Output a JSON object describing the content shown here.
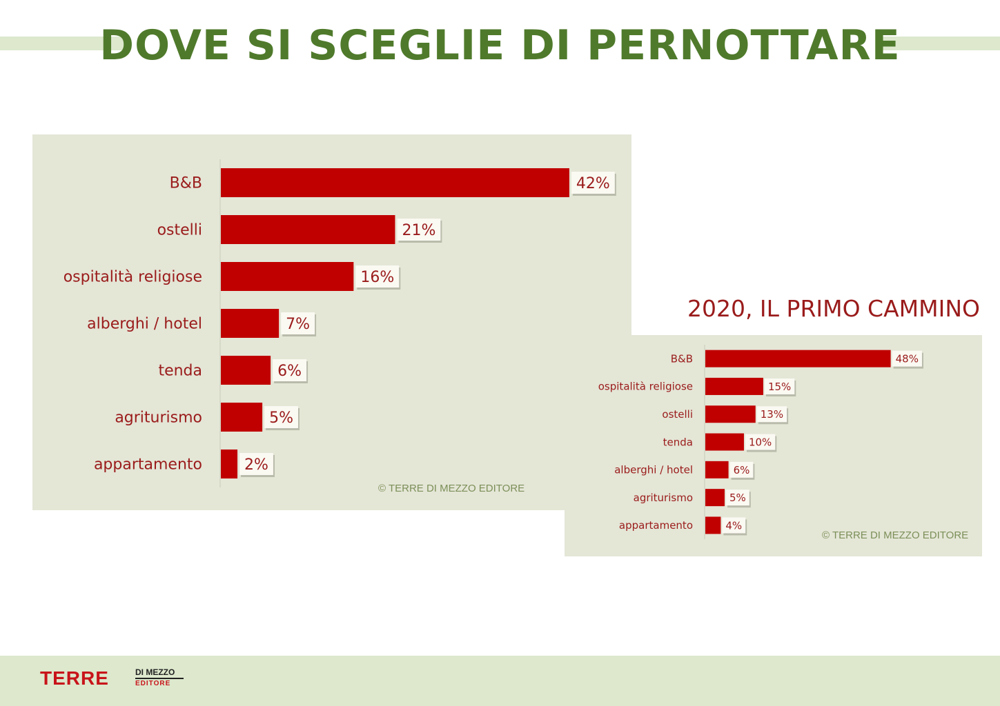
{
  "slide": {
    "title": "DOVE SI SCEGLIE DI PERNOTTARE",
    "inset_heading": "2020, IL PRIMO CAMMINO",
    "credit": "© TERRE DI MEZZO EDITORE",
    "accent_green": "#4f7a2b",
    "bar_color": "#c00000",
    "label_color": "#9a1b1b"
  },
  "logo": {
    "main": "TERRE",
    "top": "DI MEZZO",
    "bottom": "EDITORE"
  },
  "chart_data": [
    {
      "type": "bar",
      "orientation": "horizontal",
      "title": "",
      "categories": [
        "B&B",
        "ostelli",
        "ospitalità religiose",
        "alberghi / hotel",
        "tenda",
        "agriturismo",
        "appartamento"
      ],
      "values": [
        42,
        21,
        16,
        7,
        6,
        5,
        2
      ],
      "value_labels": [
        "42%",
        "21%",
        "16%",
        "7%",
        "6%",
        "5%",
        "2%"
      ],
      "unit": "%",
      "xlim": [
        0,
        45
      ],
      "grid": false,
      "legend": "none"
    },
    {
      "type": "bar",
      "orientation": "horizontal",
      "title": "2020, IL PRIMO CAMMINO",
      "categories": [
        "B&B",
        "ospitalità religiose",
        "ostelli",
        "tenda",
        "alberghi / hotel",
        "agriturismo",
        "appartamento"
      ],
      "values": [
        48,
        15,
        13,
        10,
        6,
        5,
        4
      ],
      "value_labels": [
        "48%",
        "15%",
        "13%",
        "10%",
        "6%",
        "5%",
        "4%"
      ],
      "unit": "%",
      "xlim": [
        0,
        52
      ],
      "grid": false,
      "legend": "none"
    }
  ]
}
